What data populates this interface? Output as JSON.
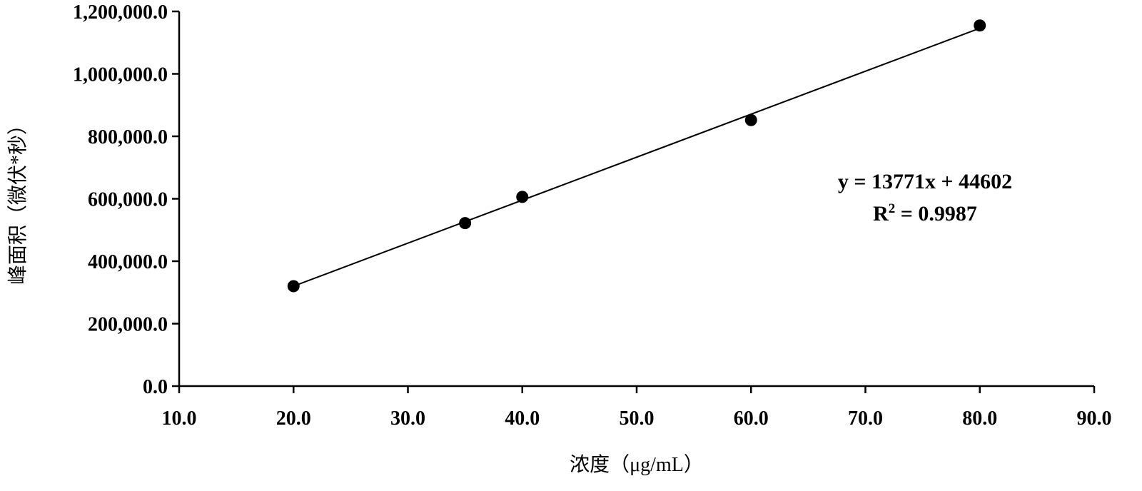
{
  "chart_data": {
    "type": "scatter",
    "title": "",
    "xlabel": "浓度（μg/mL）",
    "ylabel": "峰面积（微伏*秒）",
    "xlim": [
      10.0,
      90.0
    ],
    "ylim": [
      0.0,
      1200000.0
    ],
    "x_ticks": [
      "10.0",
      "20.0",
      "30.0",
      "40.0",
      "50.0",
      "60.0",
      "70.0",
      "80.0",
      "90.0"
    ],
    "y_ticks": [
      "0.0",
      "200,000.0",
      "400,000.0",
      "600,000.0",
      "800,000.0",
      "1,000,000.0",
      "1,200,000.0"
    ],
    "grid": false,
    "series": [
      {
        "x": [
          20,
          35,
          40,
          60,
          80
        ],
        "y": [
          320000,
          522000,
          606000,
          852000,
          1155000
        ],
        "marker_color": "#000000"
      }
    ],
    "trendline": {
      "type": "linear",
      "slope": 13771,
      "intercept": 44602,
      "x_range": [
        20,
        80
      ],
      "color": "#000000"
    },
    "annotations": {
      "equation": "y = 13771x + 44602",
      "r2_prefix": "R",
      "r2_exponent": "2",
      "r2_value": " = 0.9987"
    }
  }
}
